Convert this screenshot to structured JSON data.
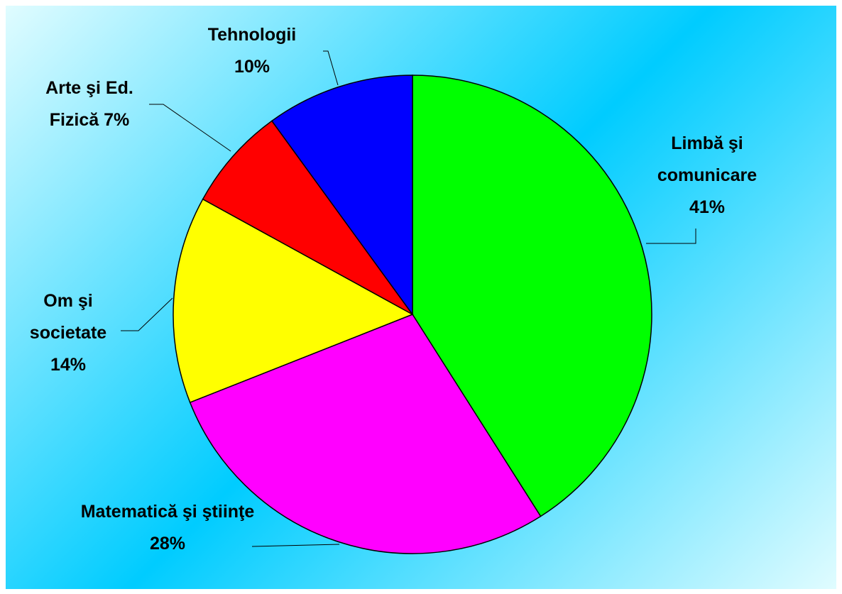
{
  "chart_data": {
    "type": "pie",
    "categories": [
      "Limbă şi comunicare",
      "Matematică şi ştiinţe",
      "Om şi societate",
      "Arte şi Ed. Fizică",
      "Tehnologii"
    ],
    "values": [
      41,
      28,
      14,
      7,
      10
    ],
    "value_labels": [
      "41%",
      "28%",
      "14%",
      "7%",
      "10%"
    ],
    "colors": [
      "#00ff00",
      "#ff00ff",
      "#ffff00",
      "#ff0000",
      "#0000ff"
    ]
  }
}
